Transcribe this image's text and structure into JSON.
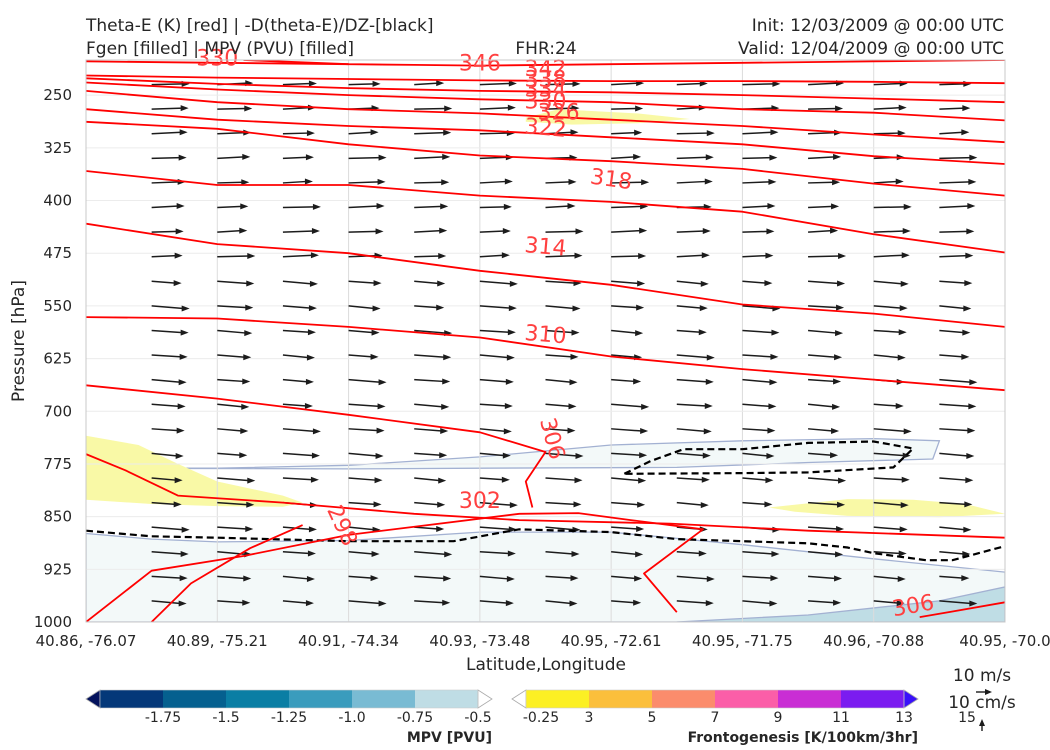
{
  "header": {
    "title_left_1": "Theta-E (K) [red] | -D(theta-E)/DZ-[black]",
    "title_left_2": "Fgen [filled] | MPV (PVU) [filled]",
    "fhr": "FHR:24",
    "init": "Init: 12/03/2009 @ 00:00 UTC",
    "valid": "Valid: 12/04/2009 @ 00:00 UTC"
  },
  "chart_data": {
    "type": "contour",
    "title": "Theta-E (K) [red] | -D(theta-E)/DZ-[black] | Fgen [filled] | MPV (PVU) [filled]",
    "xlabel": "Latitude,Longitude",
    "ylabel": "Pressure [hPa]",
    "y_scale": "linear, inverted",
    "ylim": [
      1000,
      200
    ],
    "x_ticks": [
      "40.86, -76.07",
      "40.89, -75.21",
      "40.91, -74.34",
      "40.93, -73.48",
      "40.95, -72.61",
      "40.95, -71.75",
      "40.96, -70.88",
      "40.95, -70.0"
    ],
    "y_ticks": [
      250,
      325,
      400,
      475,
      550,
      625,
      700,
      775,
      850,
      925,
      1000
    ],
    "grid": true,
    "theta_e_contours": [
      {
        "label": "298",
        "color": "#ff0000",
        "points": [
          [
            0.5,
            1000
          ],
          [
            0.8,
            945
          ],
          [
            1.25,
            895
          ],
          [
            1.65,
            862
          ]
        ]
      },
      {
        "label": "302",
        "color": "#ff0000",
        "points": [
          [
            0.0,
            1000
          ],
          [
            0.5,
            927
          ],
          [
            1.2,
            906
          ],
          [
            2.0,
            876
          ],
          [
            3.3,
            846
          ],
          [
            3.75,
            845
          ],
          [
            4.15,
            855
          ],
          [
            4.7,
            868
          ],
          [
            4.25,
            931
          ],
          [
            4.5,
            986
          ]
        ]
      },
      {
        "label": "306",
        "color": "#ff0000",
        "points": [
          [
            0.0,
            761
          ],
          [
            0.3,
            784
          ],
          [
            0.7,
            820
          ],
          [
            1.5,
            830
          ],
          [
            2.5,
            846
          ],
          [
            3.3,
            855
          ],
          [
            4.45,
            860
          ],
          [
            5.5,
            870
          ],
          [
            7.0,
            880
          ]
        ]
      },
      {
        "label": "306",
        "color": "#ff0000",
        "points": [
          [
            0.0,
            663
          ],
          [
            1.0,
            682
          ],
          [
            2.0,
            705
          ],
          [
            3.0,
            730
          ],
          [
            3.5,
            758
          ],
          [
            3.35,
            800
          ],
          [
            3.4,
            837
          ]
        ]
      },
      {
        "label": "306",
        "color": "#ff0000",
        "points": [
          [
            6.35,
            993
          ],
          [
            6.6,
            985
          ],
          [
            7.0,
            972
          ]
        ]
      },
      {
        "label": "310",
        "color": "#ff0000",
        "points": [
          [
            0.0,
            566
          ],
          [
            1.0,
            568
          ],
          [
            2.0,
            580
          ],
          [
            3.0,
            595
          ],
          [
            4.0,
            622
          ],
          [
            5.0,
            640
          ],
          [
            6.0,
            655
          ],
          [
            7.0,
            670
          ]
        ]
      },
      {
        "label": "314",
        "color": "#ff0000",
        "points": [
          [
            0.0,
            433
          ],
          [
            1.0,
            462
          ],
          [
            2.0,
            475
          ],
          [
            3.0,
            500
          ],
          [
            4.0,
            520
          ],
          [
            5.0,
            548
          ],
          [
            6.0,
            561
          ],
          [
            7.0,
            580
          ]
        ]
      },
      {
        "label": "318",
        "color": "#ff0000",
        "points": [
          [
            0.0,
            358
          ],
          [
            1.0,
            378
          ],
          [
            2.0,
            378
          ],
          [
            3.0,
            393
          ],
          [
            4.0,
            402
          ],
          [
            5.0,
            416
          ],
          [
            6.0,
            448
          ],
          [
            7.0,
            474
          ]
        ]
      },
      {
        "label": "322",
        "color": "#ff0000",
        "points": [
          [
            0.0,
            288
          ],
          [
            1.0,
            298
          ],
          [
            2.0,
            320
          ],
          [
            3.0,
            336
          ],
          [
            4.0,
            344
          ],
          [
            5.0,
            355
          ],
          [
            6.0,
            376
          ],
          [
            7.0,
            393
          ]
        ]
      },
      {
        "label": "326",
        "color": "#ff0000",
        "points": [
          [
            0.0,
            270
          ],
          [
            1.0,
            285
          ],
          [
            2.0,
            294
          ],
          [
            3.0,
            300
          ],
          [
            4.0,
            310
          ],
          [
            5.0,
            320
          ],
          [
            6.0,
            337
          ],
          [
            7.0,
            348
          ]
        ]
      },
      {
        "label": "330",
        "color": "#ff0000",
        "points": [
          [
            0.0,
            244
          ],
          [
            1.0,
            260
          ],
          [
            2.0,
            270
          ],
          [
            3.0,
            276
          ],
          [
            4.0,
            285
          ],
          [
            5.0,
            294
          ],
          [
            6.0,
            306
          ],
          [
            7.0,
            317
          ]
        ]
      },
      {
        "label": "334",
        "color": "#ff0000",
        "points": [
          [
            0.0,
            232
          ],
          [
            1.0,
            242
          ],
          [
            2.0,
            250
          ],
          [
            3.0,
            256
          ],
          [
            4.0,
            260
          ],
          [
            5.0,
            270
          ],
          [
            6.0,
            275
          ],
          [
            7.0,
            286
          ]
        ]
      },
      {
        "label": "338",
        "color": "#ff0000",
        "points": [
          [
            0.0,
            226
          ],
          [
            1.0,
            234
          ],
          [
            2.0,
            240
          ],
          [
            3.0,
            244
          ],
          [
            4.0,
            246
          ],
          [
            5.0,
            250
          ],
          [
            6.0,
            255
          ],
          [
            7.0,
            260
          ]
        ]
      },
      {
        "label": "342",
        "color": "#ff0000",
        "points": [
          [
            0.0,
            222
          ],
          [
            1.0,
            225
          ],
          [
            2.0,
            227
          ],
          [
            3.0,
            229
          ],
          [
            4.0,
            230
          ],
          [
            5.0,
            230
          ],
          [
            6.0,
            231
          ],
          [
            7.0,
            233
          ]
        ]
      },
      {
        "label": "346",
        "color": "#ff0000",
        "points": [
          [
            1.2,
            200
          ],
          [
            2.0,
            206
          ],
          [
            2.5,
            207
          ],
          [
            3.0,
            208
          ],
          [
            4.0,
            206
          ],
          [
            5.0,
            204
          ],
          [
            6.0,
            202
          ],
          [
            7.0,
            200
          ]
        ]
      },
      {
        "label": "330",
        "color": "#ff0000",
        "points": [
          [
            0.0,
            202
          ],
          [
            1.0,
            204
          ],
          [
            2.0,
            206
          ]
        ]
      }
    ],
    "theta_e_labels": [
      {
        "text": "346",
        "x": 3.0,
        "p": 205,
        "angle": 0
      },
      {
        "text": "342",
        "x": 3.5,
        "p": 213,
        "angle": 0
      },
      {
        "text": "338",
        "x": 3.5,
        "p": 228,
        "angle": 0
      },
      {
        "text": "334",
        "x": 3.5,
        "p": 242,
        "angle": 0
      },
      {
        "text": "330",
        "x": 3.5,
        "p": 259,
        "angle": 0
      },
      {
        "text": "326",
        "x": 3.6,
        "p": 275,
        "angle": 0
      },
      {
        "text": "322",
        "x": 3.5,
        "p": 297,
        "angle": 5
      },
      {
        "text": "318",
        "x": 4.0,
        "p": 370,
        "angle": 8
      },
      {
        "text": "314",
        "x": 3.5,
        "p": 466,
        "angle": 5
      },
      {
        "text": "310",
        "x": 3.5,
        "p": 591,
        "angle": 5
      },
      {
        "text": "306",
        "x": 3.55,
        "p": 739,
        "angle": 75
      },
      {
        "text": "302",
        "x": 3.0,
        "p": 828,
        "angle": 0
      },
      {
        "text": "298",
        "x": 1.95,
        "p": 863,
        "angle": 65
      },
      {
        "text": "306",
        "x": 6.3,
        "p": 977,
        "angle": -10
      },
      {
        "text": "330",
        "x": 1.0,
        "p": 198,
        "angle": 0
      }
    ],
    "dtheta_dz_contours": [
      {
        "color": "#000000",
        "style": "dashed",
        "points": [
          [
            0.0,
            870
          ],
          [
            0.5,
            878
          ],
          [
            1.0,
            880
          ],
          [
            2.0,
            885
          ],
          [
            2.8,
            885
          ],
          [
            3.3,
            868
          ],
          [
            4.0,
            872
          ],
          [
            4.5,
            882
          ],
          [
            5.0,
            885
          ],
          [
            5.5,
            888
          ],
          [
            5.8,
            894
          ],
          [
            6.0,
            902
          ],
          [
            6.4,
            912
          ],
          [
            6.6,
            912
          ],
          [
            7.0,
            892
          ]
        ]
      },
      {
        "color": "#000000",
        "style": "dashed",
        "points": [
          [
            4.1,
            789
          ],
          [
            4.3,
            771
          ],
          [
            4.55,
            754
          ],
          [
            5.0,
            754
          ],
          [
            5.5,
            745
          ],
          [
            6.0,
            743
          ],
          [
            6.3,
            753
          ],
          [
            6.15,
            780
          ],
          [
            5.5,
            787
          ],
          [
            5.0,
            788
          ],
          [
            4.1,
            789
          ]
        ]
      }
    ],
    "mpv_filled": [
      {
        "level": "-0.25",
        "color": "#f3f9f9",
        "region": [
          [
            0.0,
            874
          ],
          [
            0.5,
            882
          ],
          [
            1.0,
            886
          ],
          [
            2.0,
            884
          ],
          [
            3.0,
            872
          ],
          [
            4.0,
            872
          ],
          [
            5.0,
            890
          ],
          [
            6.0,
            910
          ],
          [
            7.0,
            929
          ],
          [
            7.0,
            1000
          ],
          [
            0.0,
            1000
          ]
        ]
      },
      {
        "level": "-0.25",
        "color": "#f3f9f9",
        "region": [
          [
            0.0,
            781
          ],
          [
            1.0,
            781
          ],
          [
            2.0,
            777
          ],
          [
            3.0,
            765
          ],
          [
            4.0,
            748
          ],
          [
            5.0,
            742
          ],
          [
            6.0,
            739
          ],
          [
            6.5,
            742
          ],
          [
            6.45,
            768
          ],
          [
            5.5,
            773
          ],
          [
            4.5,
            780
          ],
          [
            3.0,
            781
          ],
          [
            2.0,
            782
          ],
          [
            0.0,
            781
          ]
        ]
      },
      {
        "level": "-0.5",
        "color": "#bfdde5",
        "region": [
          [
            4.5,
            1000
          ],
          [
            5.5,
            990
          ],
          [
            6.5,
            970
          ],
          [
            7.0,
            950
          ],
          [
            7.0,
            1000
          ]
        ]
      }
    ],
    "fgen_filled": [
      {
        "level": "3",
        "color": "#f9f9a6",
        "region": [
          [
            0.0,
            735
          ],
          [
            0.4,
            748
          ],
          [
            0.7,
            775
          ],
          [
            1.0,
            800
          ],
          [
            1.5,
            820
          ],
          [
            1.65,
            830
          ],
          [
            1.5,
            836
          ],
          [
            1.0,
            835
          ],
          [
            0.5,
            832
          ],
          [
            0.0,
            826
          ]
        ]
      },
      {
        "level": "3",
        "color": "#f9f9a6",
        "region": [
          [
            5.2,
            837
          ],
          [
            5.8,
            825
          ],
          [
            6.3,
            826
          ],
          [
            6.7,
            832
          ],
          [
            7.0,
            846
          ],
          [
            6.5,
            851
          ],
          [
            5.8,
            849
          ],
          [
            5.4,
            843
          ]
        ]
      },
      {
        "level": "3",
        "color": "#f9f9a6",
        "region": [
          [
            3.35,
            282
          ],
          [
            3.6,
            270
          ],
          [
            4.2,
            276
          ],
          [
            4.6,
            284
          ],
          [
            4.2,
            290
          ],
          [
            3.7,
            292
          ],
          [
            3.35,
            288
          ]
        ]
      }
    ],
    "wind_vectors": {
      "color": "#1c1c1c",
      "reference": "10 m/s",
      "reference_vertical": "10 cm/s"
    },
    "colorbars": [
      {
        "label": "MPV [PVU]",
        "ticks": [
          "-1.75",
          "-1.5",
          "-1.25",
          "-1.0",
          "-0.75",
          "-0.5",
          "-0.25"
        ],
        "colors": [
          "#03125c",
          "#043879",
          "#05608f",
          "#0a7ea4",
          "#3a9cbd",
          "#79bbd3",
          "#bfdde5",
          "#ffffff"
        ],
        "extend": "both"
      },
      {
        "label": "Frontogenesis [K/100km/3hr]",
        "ticks": [
          "3",
          "5",
          "7",
          "9",
          "11",
          "13",
          "15"
        ],
        "colors": [
          "#ffffff",
          "#fcf024",
          "#fbbf3c",
          "#fb8c6c",
          "#fb5ea8",
          "#c92ed4",
          "#7b1cf0",
          "#3a10fa"
        ],
        "extend": "both"
      }
    ]
  }
}
